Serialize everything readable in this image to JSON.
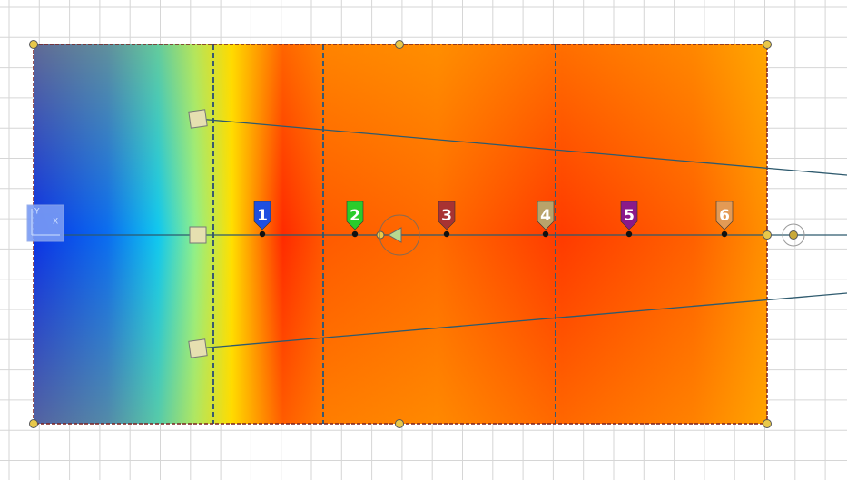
{
  "markers": [
    {
      "label": "1",
      "color": "#1f4fe0"
    },
    {
      "label": "2",
      "color": "#2bcc2b"
    },
    {
      "label": "3",
      "color": "#a83232"
    },
    {
      "label": "4",
      "color": "#b9a36a"
    },
    {
      "label": "5",
      "color": "#8a1a8a"
    },
    {
      "label": "6",
      "color": "#e39a55"
    }
  ],
  "gizmo": {
    "y_label": "Y",
    "x_label": "X"
  }
}
